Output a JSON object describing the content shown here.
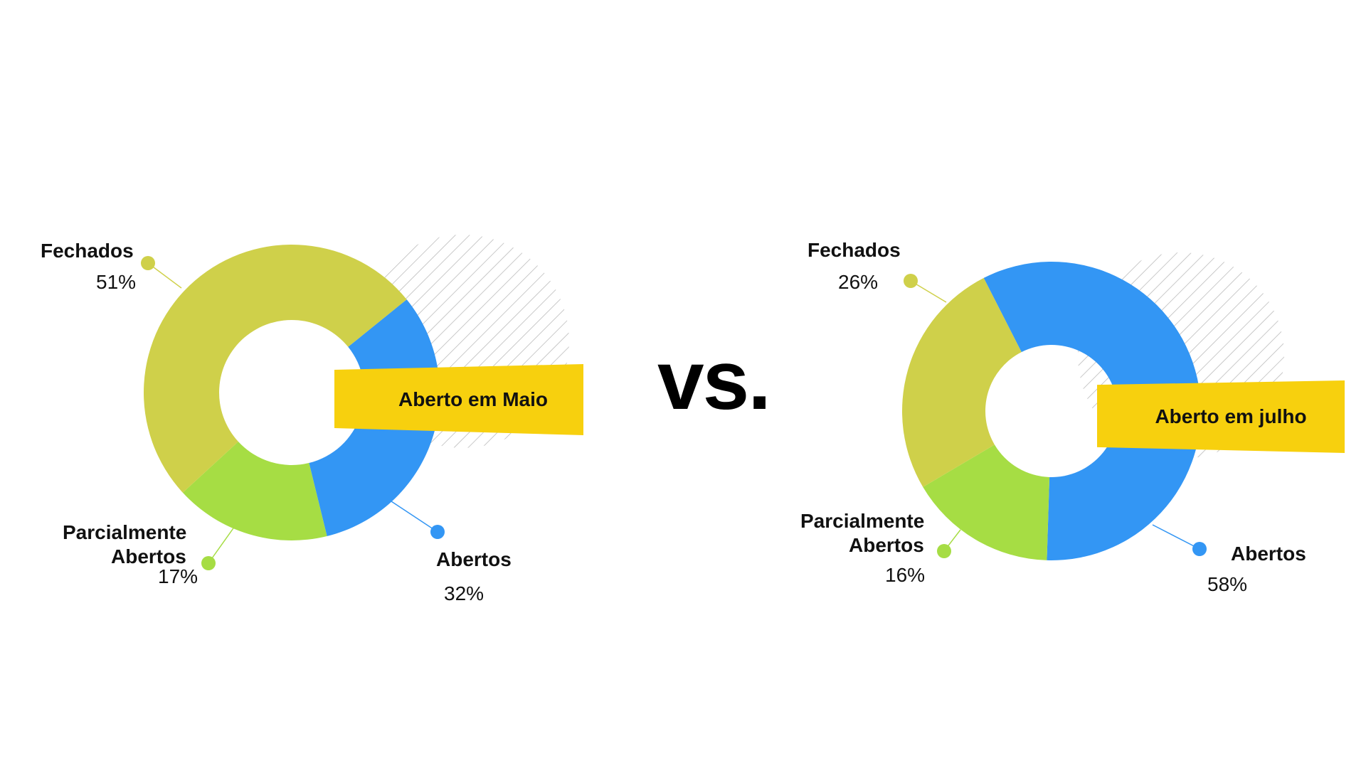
{
  "vs_text": "vs.",
  "chart_data": [
    {
      "type": "pie",
      "title": "Aberto em Maio",
      "slices": [
        {
          "label": "Fechados",
          "value": 51,
          "display": "51%",
          "color": "#cfd04a"
        },
        {
          "label": "Abertos",
          "value": 32,
          "display": "32%",
          "color": "#3396f4"
        },
        {
          "label": "Parcialmente Abertos",
          "label_lines": [
            "Parcialmente",
            "Abertos"
          ],
          "value": 17,
          "display": "17%",
          "color": "#a6dd44"
        }
      ]
    },
    {
      "type": "pie",
      "title": "Aberto em julho",
      "slices": [
        {
          "label": "Fechados",
          "value": 26,
          "display": "26%",
          "color": "#cfd04a"
        },
        {
          "label": "Abertos",
          "value": 58,
          "display": "58%",
          "color": "#3396f4"
        },
        {
          "label": "Parcialmente Abertos",
          "label_lines": [
            "Parcialmente",
            "Abertos"
          ],
          "value": 16,
          "display": "16%",
          "color": "#a6dd44"
        }
      ]
    }
  ]
}
